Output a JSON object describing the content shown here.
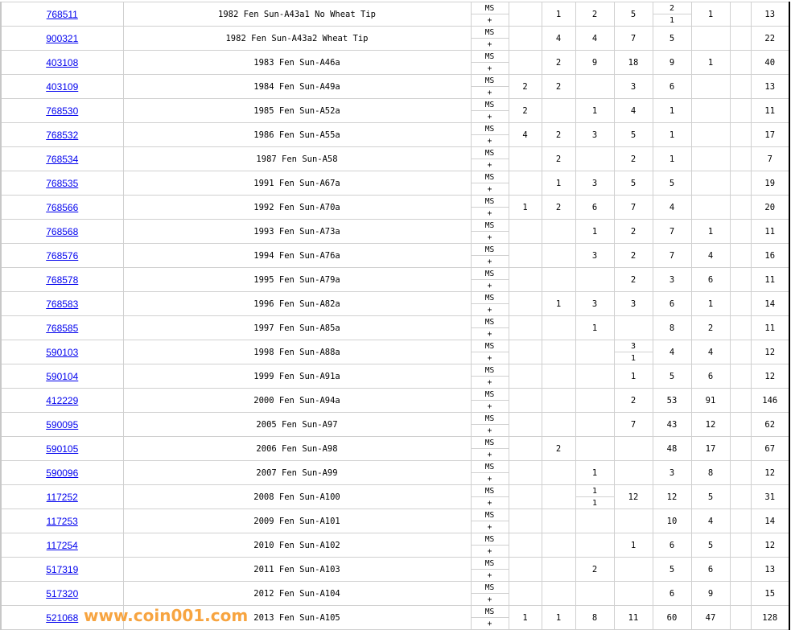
{
  "grade_labels": {
    "top": "MS",
    "bottom": "+"
  },
  "watermark": "www.coin001.com",
  "colors": {
    "link": "#0000ee",
    "watermark": "#f7a440",
    "grid": "#d0d0d0"
  },
  "rows": [
    {
      "id": "768511",
      "desc": "1982 Fen Sun-A43a1 No Wheat Tip",
      "c": [
        "",
        "1",
        "2",
        "5",
        [
          "2",
          "1"
        ],
        "1",
        ""
      ],
      "total": "13"
    },
    {
      "id": "900321",
      "desc": "1982 Fen Sun-A43a2 Wheat Tip",
      "c": [
        "",
        "4",
        "4",
        "7",
        "5",
        "",
        ""
      ],
      "total": "22"
    },
    {
      "id": "403108",
      "desc": "1983 Fen Sun-A46a",
      "c": [
        "",
        "2",
        "9",
        "18",
        "9",
        "1",
        ""
      ],
      "total": "40"
    },
    {
      "id": "403109",
      "desc": "1984 Fen Sun-A49a",
      "c": [
        "2",
        "2",
        "",
        "3",
        "6",
        "",
        ""
      ],
      "total": "13"
    },
    {
      "id": "768530",
      "desc": "1985 Fen Sun-A52a",
      "c": [
        "2",
        "",
        "1",
        "4",
        "1",
        "",
        ""
      ],
      "total": "11"
    },
    {
      "id": "768532",
      "desc": "1986 Fen Sun-A55a",
      "c": [
        "4",
        "2",
        "3",
        "5",
        "1",
        "",
        ""
      ],
      "total": "17"
    },
    {
      "id": "768534",
      "desc": "1987 Fen Sun-A58",
      "c": [
        "",
        "2",
        "",
        "2",
        "1",
        "",
        ""
      ],
      "total": "7"
    },
    {
      "id": "768535",
      "desc": "1991 Fen Sun-A67a",
      "c": [
        "",
        "1",
        "3",
        "5",
        "5",
        "",
        ""
      ],
      "total": "19"
    },
    {
      "id": "768566",
      "desc": "1992 Fen Sun-A70a",
      "c": [
        "1",
        "2",
        "6",
        "7",
        "4",
        "",
        ""
      ],
      "total": "20"
    },
    {
      "id": "768568",
      "desc": "1993 Fen Sun-A73a",
      "c": [
        "",
        "",
        "1",
        "2",
        "7",
        "1",
        ""
      ],
      "total": "11"
    },
    {
      "id": "768576",
      "desc": "1994 Fen Sun-A76a",
      "c": [
        "",
        "",
        "3",
        "2",
        "7",
        "4",
        ""
      ],
      "total": "16"
    },
    {
      "id": "768578",
      "desc": "1995 Fen Sun-A79a",
      "c": [
        "",
        "",
        "",
        "2",
        "3",
        "6",
        ""
      ],
      "total": "11"
    },
    {
      "id": "768583",
      "desc": "1996 Fen Sun-A82a",
      "c": [
        "",
        "1",
        "3",
        "3",
        "6",
        "1",
        ""
      ],
      "total": "14"
    },
    {
      "id": "768585",
      "desc": "1997 Fen Sun-A85a",
      "c": [
        "",
        "",
        "1",
        "",
        "8",
        "2",
        ""
      ],
      "total": "11"
    },
    {
      "id": "590103",
      "desc": "1998 Fen Sun-A88a",
      "c": [
        "",
        "",
        "",
        [
          "3",
          "1"
        ],
        "4",
        "4",
        ""
      ],
      "total": "12"
    },
    {
      "id": "590104",
      "desc": "1999 Fen Sun-A91a",
      "c": [
        "",
        "",
        "",
        "1",
        "5",
        "6",
        ""
      ],
      "total": "12"
    },
    {
      "id": "412229",
      "desc": "2000 Fen Sun-A94a",
      "c": [
        "",
        "",
        "",
        "2",
        "53",
        "91",
        ""
      ],
      "total": "146"
    },
    {
      "id": "590095",
      "desc": "2005 Fen Sun-A97",
      "c": [
        "",
        "",
        "",
        "7",
        "43",
        "12",
        ""
      ],
      "total": "62"
    },
    {
      "id": "590105",
      "desc": "2006 Fen Sun-A98",
      "c": [
        "",
        "2",
        "",
        "",
        "48",
        "17",
        ""
      ],
      "total": "67"
    },
    {
      "id": "590096",
      "desc": "2007 Fen Sun-A99",
      "c": [
        "",
        "",
        "1",
        "",
        "3",
        "8",
        ""
      ],
      "total": "12"
    },
    {
      "id": "117252",
      "desc": "2008 Fen Sun-A100",
      "c": [
        "",
        "",
        [
          "1",
          "1"
        ],
        "12",
        "12",
        "5",
        ""
      ],
      "total": "31"
    },
    {
      "id": "117253",
      "desc": "2009 Fen Sun-A101",
      "c": [
        "",
        "",
        "",
        "",
        "10",
        "4",
        ""
      ],
      "total": "14"
    },
    {
      "id": "117254",
      "desc": "2010 Fen Sun-A102",
      "c": [
        "",
        "",
        "",
        "1",
        "6",
        "5",
        ""
      ],
      "total": "12"
    },
    {
      "id": "517319",
      "desc": "2011 Fen Sun-A103",
      "c": [
        "",
        "",
        "2",
        "",
        "5",
        "6",
        ""
      ],
      "total": "13"
    },
    {
      "id": "517320",
      "desc": "2012 Fen Sun-A104",
      "c": [
        "",
        "",
        "",
        "",
        "6",
        "9",
        ""
      ],
      "total": "15"
    },
    {
      "id": "521068",
      "desc": "2013 Fen Sun-A105",
      "c": [
        "1",
        "1",
        "8",
        "11",
        "60",
        "47",
        ""
      ],
      "total": "128"
    }
  ]
}
